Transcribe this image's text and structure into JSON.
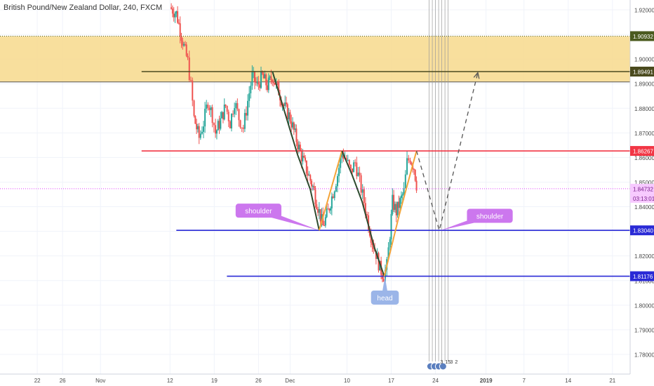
{
  "header": {
    "title": "British Pound/New Zealand Dollar, 240, FXCM"
  },
  "chart_data": {
    "type": "candlestick",
    "symbol": "British Pound/New Zealand Dollar",
    "interval": "240",
    "source": "FXCM",
    "ylim": [
      1.772,
      1.924
    ],
    "y_ticks": [
      1.92,
      1.91,
      1.9,
      1.89,
      1.88,
      1.87,
      1.86,
      1.85,
      1.84,
      1.83,
      1.82,
      1.81,
      1.8,
      1.79,
      1.78
    ],
    "x_ticks": [
      {
        "label": "22",
        "x": 22
      },
      {
        "label": "26",
        "x": 26
      },
      {
        "label": "Nov",
        "x": 32
      },
      {
        "label": "12",
        "x": 43
      },
      {
        "label": "19",
        "x": 50
      },
      {
        "label": "26",
        "x": 57
      },
      {
        "label": "Dec",
        "x": 62
      },
      {
        "label": "10",
        "x": 71
      },
      {
        "label": "17",
        "x": 78
      },
      {
        "label": "24",
        "x": 85
      },
      {
        "label": "2019",
        "x": 93
      },
      {
        "label": "7",
        "x": 99
      },
      {
        "label": "14",
        "x": 106
      },
      {
        "label": "21",
        "x": 113
      }
    ],
    "xlim": [
      16.1,
      115.8
    ],
    "resistance_zone": {
      "from": 1.8907,
      "to": 1.9093
    },
    "price_levels": [
      {
        "value": 1.90932,
        "label": "1.90932",
        "color": "#4a5a1e",
        "style": "dotted",
        "from_x": 16.1
      },
      {
        "value": 1.89491,
        "label": "1.89491",
        "color": "#4a4a1e",
        "style": "solid",
        "from_x": 38.5
      },
      {
        "value": 1.86267,
        "label": "1.86267",
        "color": "#f23645",
        "style": "solid",
        "from_x": 38.5
      },
      {
        "value": 1.84732,
        "label": "1.84732",
        "color": "#e040fb",
        "style": "dotted",
        "from_x": 16.1
      },
      {
        "value": 1.8304,
        "label": "1.83040",
        "color": "#2a2ad6",
        "style": "solid",
        "from_x": 44.0
      },
      {
        "value": 1.81176,
        "label": "1.81176",
        "color": "#2a2ad6",
        "style": "solid",
        "from_x": 52.0
      }
    ],
    "countdown": "03:13:01",
    "price_path": [
      [
        43.0,
        1.921
      ],
      [
        44.0,
        1.9185
      ],
      [
        44.6,
        1.912
      ],
      [
        45.2,
        1.905
      ],
      [
        45.8,
        1.899
      ],
      [
        46.3,
        1.889
      ],
      [
        46.8,
        1.876
      ],
      [
        47.6,
        1.868
      ],
      [
        48.3,
        1.874
      ],
      [
        49.0,
        1.883
      ],
      [
        49.7,
        1.877
      ],
      [
        50.2,
        1.87
      ],
      [
        51.0,
        1.875
      ],
      [
        51.8,
        1.881
      ],
      [
        52.5,
        1.874
      ],
      [
        53.2,
        1.883
      ],
      [
        53.9,
        1.876
      ],
      [
        54.6,
        1.872
      ],
      [
        55.3,
        1.883
      ],
      [
        56.0,
        1.893
      ],
      [
        56.8,
        1.889
      ],
      [
        57.6,
        1.893
      ],
      [
        58.4,
        1.889
      ],
      [
        59.2,
        1.893
      ],
      [
        60.2,
        1.887
      ],
      [
        61.0,
        1.881
      ],
      [
        62.0,
        1.876
      ],
      [
        62.8,
        1.869
      ],
      [
        63.6,
        1.862
      ],
      [
        64.6,
        1.855
      ],
      [
        65.6,
        1.848
      ],
      [
        66.4,
        1.84
      ],
      [
        67.2,
        1.832
      ],
      [
        68.0,
        1.838
      ],
      [
        68.8,
        1.846
      ],
      [
        69.5,
        1.853
      ],
      [
        70.2,
        1.862
      ],
      [
        70.9,
        1.859
      ],
      [
        71.6,
        1.854
      ],
      [
        72.3,
        1.858
      ],
      [
        73.0,
        1.85
      ],
      [
        73.7,
        1.842
      ],
      [
        74.4,
        1.833
      ],
      [
        75.0,
        1.826
      ],
      [
        75.6,
        1.821
      ],
      [
        76.2,
        1.815
      ],
      [
        76.8,
        1.812
      ],
      [
        77.3,
        1.816
      ],
      [
        77.8,
        1.829
      ],
      [
        78.2,
        1.842
      ],
      [
        78.8,
        1.838
      ],
      [
        79.4,
        1.842
      ],
      [
        80.0,
        1.846
      ],
      [
        80.5,
        1.858
      ],
      [
        81.0,
        1.86
      ],
      [
        81.6,
        1.856
      ],
      [
        82.0,
        1.849
      ]
    ],
    "pattern": "head and shoulders",
    "pattern_lines": [
      {
        "color": "#2e4a2e",
        "points": [
          [
            59.2,
            1.895
          ],
          [
            61.2,
            1.878
          ],
          [
            63.2,
            1.861
          ],
          [
            65.2,
            1.847
          ],
          [
            66.6,
            1.8304
          ]
        ]
      },
      {
        "color": "#f4a338",
        "points": [
          [
            66.6,
            1.8304
          ],
          [
            70.2,
            1.8627
          ]
        ]
      },
      {
        "color": "#2e4a2e",
        "points": [
          [
            70.2,
            1.8627
          ],
          [
            71.8,
            1.853
          ],
          [
            73.4,
            1.842
          ],
          [
            75.3,
            1.8237
          ],
          [
            76.9,
            1.81176
          ]
        ]
      },
      {
        "color": "#f4a338",
        "points": [
          [
            76.9,
            1.81176
          ],
          [
            79.3,
            1.837
          ],
          [
            82.0,
            1.8627
          ]
        ]
      }
    ],
    "projection": [
      [
        82.0,
        1.8627
      ],
      [
        85.6,
        1.8304
      ],
      [
        91.7,
        1.8945
      ]
    ],
    "vertical_lines_x": [
      84.0,
      84.5,
      85.0,
      85.5,
      86.0,
      86.5,
      87.0
    ],
    "annotations": [
      {
        "text": "shoulder",
        "x": 57.0,
        "y": 1.8384,
        "anchor_x": 66.6,
        "anchor_y": 1.8304,
        "color": "#cc77ee"
      },
      {
        "text": "shoulder",
        "x": 93.6,
        "y": 1.8363,
        "anchor_x": 85.8,
        "anchor_y": 1.8304,
        "color": "#cc77ee"
      },
      {
        "text": "head",
        "x": 77.0,
        "y": 1.8031,
        "anchor_x": 77.0,
        "anchor_y": 1.81176,
        "color": "#9bb5e8"
      }
    ],
    "event_badges": [
      "3",
      "15",
      "3",
      "2"
    ]
  },
  "colors": {
    "up": "#26a69a",
    "down": "#ef5350",
    "zone": "#f7d98c",
    "grid": "#f0f3fa",
    "axis_text": "#4a4a4a"
  }
}
